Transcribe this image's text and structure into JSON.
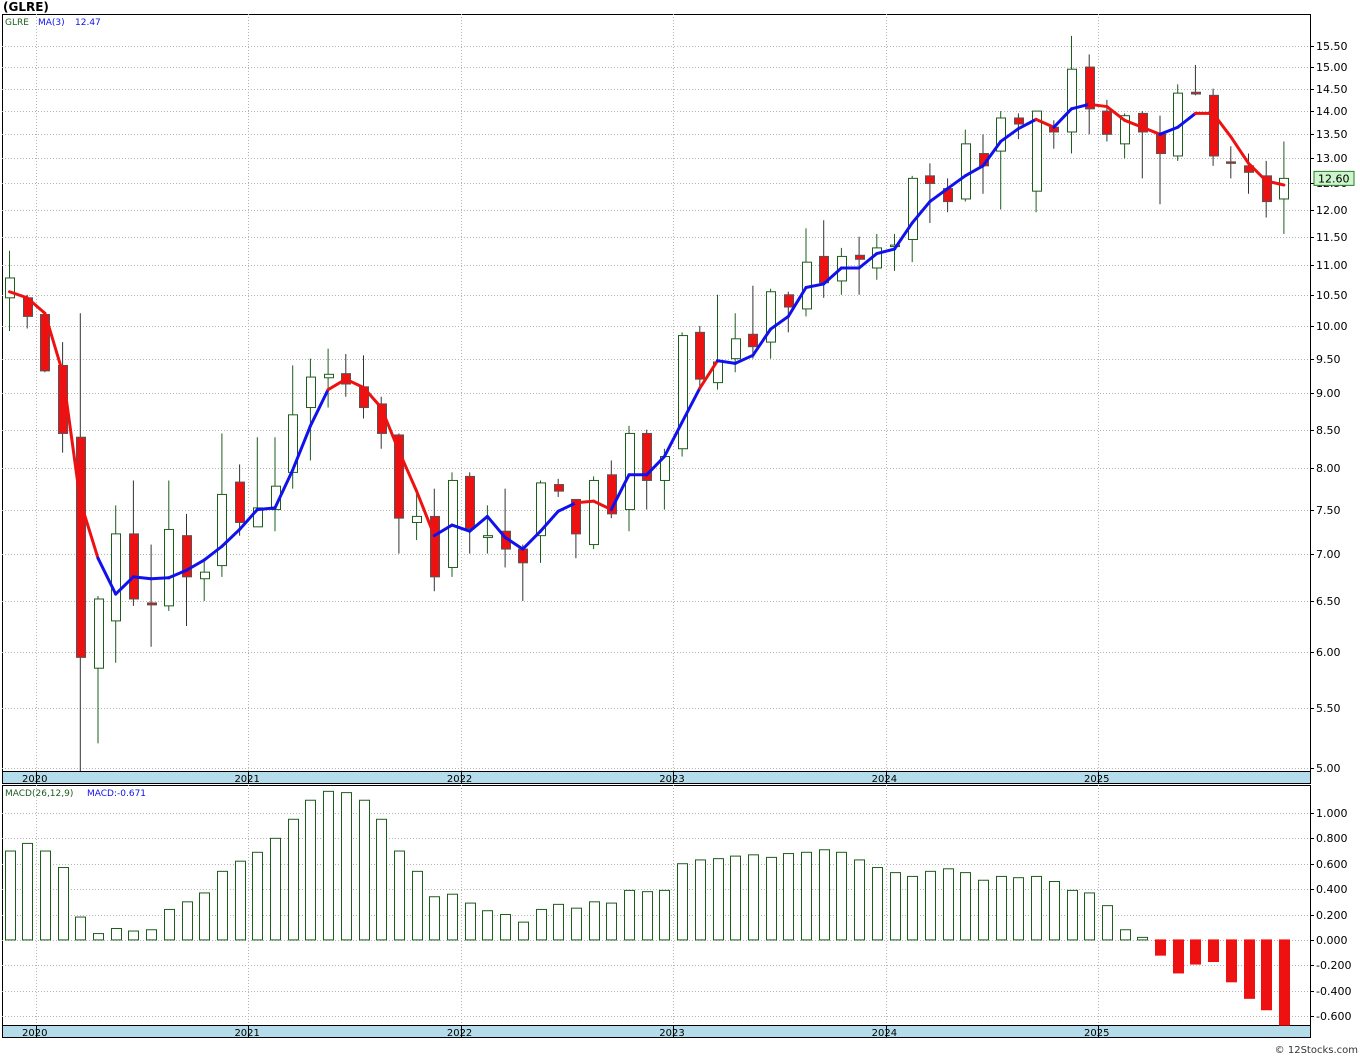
{
  "title": "(GLRE)",
  "credit": "© 12Stocks.com",
  "colors": {
    "up": "#1e5c1e",
    "down": "#ee1111",
    "ma_up": "#1111ee",
    "ma_down": "#ee1111",
    "grid": "#b4b4b4",
    "axis_band": "#b4dcea",
    "last_price_bg": "#ccf5cc"
  },
  "chart_data": [
    {
      "type": "candlestick",
      "ticker": "GLRE",
      "legend": {
        "ticker": "GLRE",
        "ma_label": "MA(3)",
        "ma_value": "12.47"
      },
      "y_scale": "log",
      "ylim": [
        4.98,
        16.3
      ],
      "y_ticks": [
        "15.50",
        "15.00",
        "14.50",
        "14.00",
        "13.50",
        "13.00",
        "12.50",
        "12.00",
        "11.50",
        "11.00",
        "10.50",
        "10.00",
        "9.50",
        "9.00",
        "8.50",
        "8.00",
        "7.50",
        "7.00",
        "6.50",
        "6.00",
        "5.50",
        "5.00"
      ],
      "x_ticks": [
        "2020",
        "2021",
        "2022",
        "2023",
        "2024",
        "2025"
      ],
      "last_price": "12.60",
      "candles": [
        {
          "o": 10.45,
          "h": 11.25,
          "l": 9.92,
          "c": 10.78
        },
        {
          "o": 10.45,
          "h": 10.5,
          "l": 9.96,
          "c": 10.15
        },
        {
          "o": 10.18,
          "h": 10.22,
          "l": 9.3,
          "c": 9.32
        },
        {
          "o": 9.4,
          "h": 9.75,
          "l": 8.2,
          "c": 8.45
        },
        {
          "o": 8.4,
          "h": 10.2,
          "l": 4.98,
          "c": 5.95
        },
        {
          "o": 5.85,
          "h": 6.55,
          "l": 5.2,
          "c": 6.52
        },
        {
          "o": 6.3,
          "h": 7.55,
          "l": 5.9,
          "c": 7.22
        },
        {
          "o": 7.22,
          "h": 7.85,
          "l": 6.45,
          "c": 6.52
        },
        {
          "o": 6.48,
          "h": 7.1,
          "l": 6.05,
          "c": 6.46
        },
        {
          "o": 6.45,
          "h": 7.85,
          "l": 6.4,
          "c": 7.27
        },
        {
          "o": 7.2,
          "h": 7.45,
          "l": 6.25,
          "c": 6.75
        },
        {
          "o": 6.73,
          "h": 6.95,
          "l": 6.5,
          "c": 6.8
        },
        {
          "o": 6.87,
          "h": 8.45,
          "l": 6.75,
          "c": 7.68
        },
        {
          "o": 7.83,
          "h": 8.05,
          "l": 7.2,
          "c": 7.35
        },
        {
          "o": 7.3,
          "h": 8.4,
          "l": 7.3,
          "c": 7.52
        },
        {
          "o": 7.5,
          "h": 8.4,
          "l": 7.25,
          "c": 7.78
        },
        {
          "o": 7.95,
          "h": 9.4,
          "l": 7.75,
          "c": 8.7
        },
        {
          "o": 8.8,
          "h": 9.5,
          "l": 8.1,
          "c": 9.23
        },
        {
          "o": 9.22,
          "h": 9.65,
          "l": 8.8,
          "c": 9.27
        },
        {
          "o": 9.28,
          "h": 9.57,
          "l": 8.95,
          "c": 9.13
        },
        {
          "o": 9.09,
          "h": 9.55,
          "l": 8.65,
          "c": 8.8
        },
        {
          "o": 8.85,
          "h": 8.95,
          "l": 8.25,
          "c": 8.45
        },
        {
          "o": 8.43,
          "h": 8.45,
          "l": 7.0,
          "c": 7.4
        },
        {
          "o": 7.35,
          "h": 7.75,
          "l": 7.15,
          "c": 7.42
        },
        {
          "o": 7.42,
          "h": 7.75,
          "l": 6.6,
          "c": 6.75
        },
        {
          "o": 6.85,
          "h": 7.95,
          "l": 6.75,
          "c": 7.85
        },
        {
          "o": 7.9,
          "h": 7.95,
          "l": 7.0,
          "c": 7.28
        },
        {
          "o": 7.18,
          "h": 7.55,
          "l": 7.0,
          "c": 7.2
        },
        {
          "o": 7.25,
          "h": 7.75,
          "l": 6.85,
          "c": 7.05
        },
        {
          "o": 7.05,
          "h": 7.1,
          "l": 6.5,
          "c": 6.9
        },
        {
          "o": 7.2,
          "h": 7.85,
          "l": 6.9,
          "c": 7.82
        },
        {
          "o": 7.8,
          "h": 7.87,
          "l": 7.65,
          "c": 7.72
        },
        {
          "o": 7.62,
          "h": 7.62,
          "l": 6.95,
          "c": 7.22
        },
        {
          "o": 7.1,
          "h": 7.9,
          "l": 7.05,
          "c": 7.85
        },
        {
          "o": 7.92,
          "h": 8.1,
          "l": 7.4,
          "c": 7.45
        },
        {
          "o": 7.5,
          "h": 8.55,
          "l": 7.25,
          "c": 8.45
        },
        {
          "o": 8.45,
          "h": 8.5,
          "l": 7.5,
          "c": 7.85
        },
        {
          "o": 7.85,
          "h": 8.25,
          "l": 7.5,
          "c": 8.15
        },
        {
          "o": 8.25,
          "h": 9.9,
          "l": 8.15,
          "c": 9.85
        },
        {
          "o": 9.9,
          "h": 10.0,
          "l": 9.1,
          "c": 9.2
        },
        {
          "o": 9.15,
          "h": 10.5,
          "l": 9.05,
          "c": 9.45
        },
        {
          "o": 9.5,
          "h": 10.2,
          "l": 9.3,
          "c": 9.8
        },
        {
          "o": 9.87,
          "h": 10.65,
          "l": 9.5,
          "c": 9.68
        },
        {
          "o": 9.75,
          "h": 10.6,
          "l": 9.5,
          "c": 10.55
        },
        {
          "o": 10.5,
          "h": 10.55,
          "l": 9.9,
          "c": 10.3
        },
        {
          "o": 10.27,
          "h": 11.65,
          "l": 10.15,
          "c": 11.05
        },
        {
          "o": 11.15,
          "h": 11.8,
          "l": 10.45,
          "c": 10.7
        },
        {
          "o": 10.73,
          "h": 11.3,
          "l": 10.5,
          "c": 11.15
        },
        {
          "o": 11.17,
          "h": 11.5,
          "l": 10.5,
          "c": 11.1
        },
        {
          "o": 10.95,
          "h": 11.55,
          "l": 10.75,
          "c": 11.3
        },
        {
          "o": 11.35,
          "h": 11.55,
          "l": 10.9,
          "c": 11.35
        },
        {
          "o": 11.45,
          "h": 12.65,
          "l": 11.05,
          "c": 12.6
        },
        {
          "o": 12.65,
          "h": 12.9,
          "l": 11.75,
          "c": 12.5
        },
        {
          "o": 12.4,
          "h": 12.6,
          "l": 11.95,
          "c": 12.15
        },
        {
          "o": 12.2,
          "h": 13.6,
          "l": 12.15,
          "c": 13.3
        },
        {
          "o": 13.1,
          "h": 13.5,
          "l": 12.3,
          "c": 12.85
        },
        {
          "o": 13.15,
          "h": 14.0,
          "l": 12.0,
          "c": 13.85
        },
        {
          "o": 13.85,
          "h": 13.95,
          "l": 13.4,
          "c": 13.72
        },
        {
          "o": 12.35,
          "h": 14.0,
          "l": 11.95,
          "c": 14.0
        },
        {
          "o": 13.65,
          "h": 13.8,
          "l": 13.2,
          "c": 13.55
        },
        {
          "o": 13.55,
          "h": 15.75,
          "l": 13.1,
          "c": 14.95
        },
        {
          "o": 15.0,
          "h": 15.3,
          "l": 13.5,
          "c": 14.05
        },
        {
          "o": 14.0,
          "h": 14.25,
          "l": 13.35,
          "c": 13.5
        },
        {
          "o": 13.3,
          "h": 13.95,
          "l": 13.0,
          "c": 13.9
        },
        {
          "o": 13.95,
          "h": 14.0,
          "l": 12.6,
          "c": 13.55
        },
        {
          "o": 13.5,
          "h": 13.9,
          "l": 12.1,
          "c": 13.1
        },
        {
          "o": 13.05,
          "h": 14.6,
          "l": 12.95,
          "c": 14.4
        },
        {
          "o": 14.42,
          "h": 15.05,
          "l": 14.35,
          "c": 14.38
        },
        {
          "o": 14.35,
          "h": 14.5,
          "l": 12.85,
          "c": 13.05
        },
        {
          "o": 12.93,
          "h": 13.25,
          "l": 12.6,
          "c": 12.9
        },
        {
          "o": 12.85,
          "h": 13.1,
          "l": 12.3,
          "c": 12.72
        },
        {
          "o": 12.65,
          "h": 12.95,
          "l": 11.85,
          "c": 12.15
        },
        {
          "o": 12.2,
          "h": 13.35,
          "l": 11.55,
          "c": 12.6
        }
      ],
      "ma3": [
        10.55,
        10.45,
        10.2,
        9.3,
        7.6,
        6.95,
        6.57,
        6.75,
        6.73,
        6.74,
        6.82,
        6.93,
        7.08,
        7.27,
        7.5,
        7.52,
        7.98,
        8.55,
        9.05,
        9.2,
        9.08,
        8.8,
        8.22,
        7.72,
        7.2,
        7.32,
        7.25,
        7.42,
        7.18,
        7.05,
        7.25,
        7.48,
        7.58,
        7.6,
        7.5,
        7.92,
        7.92,
        8.15,
        8.6,
        9.07,
        9.47,
        9.43,
        9.55,
        9.95,
        10.15,
        10.62,
        10.68,
        10.95,
        10.95,
        11.2,
        11.28,
        11.75,
        12.15,
        12.4,
        12.65,
        12.85,
        13.35,
        13.62,
        13.82,
        13.65,
        14.05,
        14.15,
        14.1,
        13.8,
        13.65,
        13.5,
        13.65,
        13.95,
        13.95,
        13.45,
        12.9,
        12.55,
        12.47
      ],
      "ma_trend": [
        "down",
        "down",
        "down",
        "down",
        "down",
        "down",
        "up",
        "up",
        "up",
        "up",
        "up",
        "up",
        "up",
        "up",
        "up",
        "up",
        "up",
        "up",
        "up",
        "down",
        "down",
        "down",
        "down",
        "down",
        "down",
        "up",
        "up",
        "up",
        "up",
        "up",
        "up",
        "up",
        "up",
        "down",
        "down",
        "up",
        "up",
        "up",
        "up",
        "up",
        "down",
        "up",
        "up",
        "up",
        "up",
        "up",
        "up",
        "up",
        "up",
        "up",
        "up",
        "up",
        "up",
        "up",
        "up",
        "up",
        "up",
        "up",
        "up",
        "down",
        "up",
        "up",
        "down",
        "down",
        "down",
        "down",
        "up",
        "up",
        "down",
        "down",
        "down",
        "down",
        "down"
      ]
    },
    {
      "type": "macd_histogram",
      "legend": {
        "label": "MACD(26,12,9)",
        "value_label": "MACD:-0.671"
      },
      "ylim": [
        -0.67,
        1.22
      ],
      "y_ticks": [
        "1.000",
        "0.800",
        "0.600",
        "0.400",
        "0.200",
        "0.000",
        "-0.200",
        "-0.400",
        "-0.600"
      ],
      "x_ticks": [
        "2020",
        "2021",
        "2022",
        "2023",
        "2024",
        "2025"
      ],
      "values": [
        0.7,
        0.76,
        0.7,
        0.57,
        0.18,
        0.05,
        0.09,
        0.07,
        0.08,
        0.24,
        0.3,
        0.37,
        0.54,
        0.62,
        0.69,
        0.8,
        0.95,
        1.1,
        1.17,
        1.16,
        1.1,
        0.95,
        0.7,
        0.54,
        0.34,
        0.36,
        0.29,
        0.23,
        0.2,
        0.14,
        0.24,
        0.28,
        0.25,
        0.3,
        0.29,
        0.39,
        0.38,
        0.39,
        0.6,
        0.63,
        0.64,
        0.66,
        0.67,
        0.65,
        0.68,
        0.69,
        0.71,
        0.69,
        0.63,
        0.57,
        0.53,
        0.5,
        0.54,
        0.56,
        0.53,
        0.47,
        0.5,
        0.49,
        0.5,
        0.46,
        0.39,
        0.37,
        0.27,
        0.08,
        0.02,
        -0.12,
        -0.26,
        -0.19,
        -0.17,
        -0.33,
        -0.46,
        -0.55,
        -0.671
      ]
    }
  ]
}
